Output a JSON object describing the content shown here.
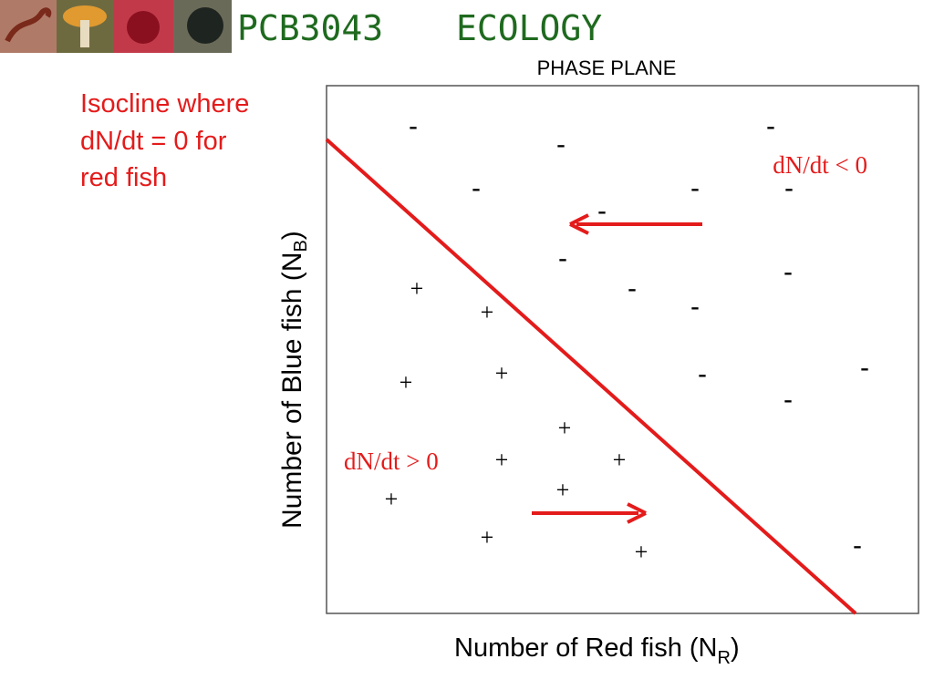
{
  "header": {
    "course": "PCB3043",
    "subject": "ECOLOGY"
  },
  "slide_title": "PHASE PLANE",
  "isocline_label": [
    "Isocline where",
    "dN/dt = 0 for",
    "red fish"
  ],
  "plot": {
    "y_axis_label": {
      "text": "Number of Blue fish (N",
      "subscript": "B",
      "close": ")"
    },
    "x_axis_label": {
      "text": "Number of Red fish (N",
      "subscript": "R",
      "close": ")"
    },
    "decrease_label": "dN/dt < 0",
    "increase_label": "dN/dt > 0",
    "minus_signs": [
      "-",
      "-",
      "-",
      "-",
      "-",
      "-",
      "-",
      "-",
      "-",
      "-",
      "-",
      "-",
      "-",
      "-",
      "-"
    ],
    "plus_signs": [
      "+",
      "+",
      "+",
      "+",
      "+",
      "+",
      "+",
      "+",
      "+",
      "+",
      "+"
    ]
  }
}
